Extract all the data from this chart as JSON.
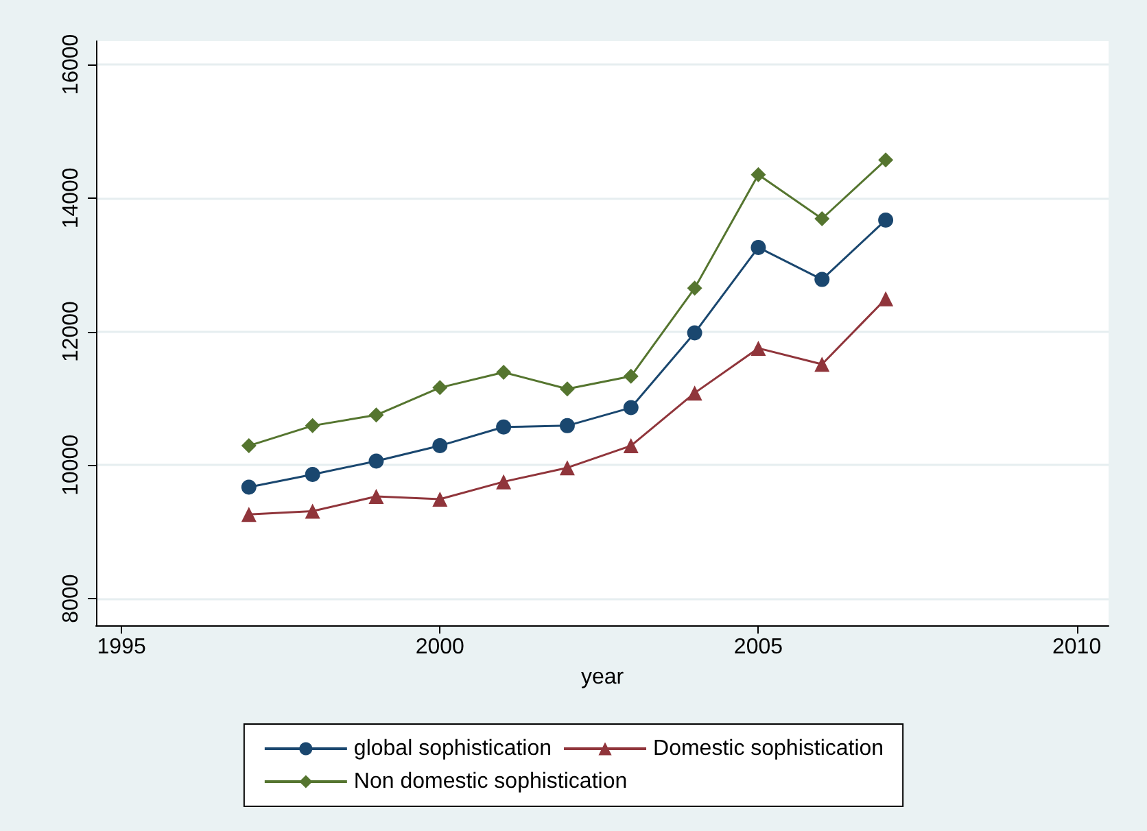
{
  "chart_data": {
    "type": "line",
    "xlabel": "year",
    "x": [
      1997,
      1998,
      1999,
      2000,
      2001,
      2002,
      2003,
      2004,
      2005,
      2006,
      2007
    ],
    "series": [
      {
        "name": "global sophistication",
        "color": "#1a476f",
        "marker": "circle",
        "values": [
          9670,
          9860,
          10060,
          10290,
          10570,
          10590,
          10860,
          11980,
          13260,
          12780,
          13670
        ]
      },
      {
        "name": "Domestic sophistication",
        "color": "#90353b",
        "marker": "triangle",
        "values": [
          9260,
          9310,
          9530,
          9490,
          9750,
          9960,
          10290,
          11080,
          11750,
          11510,
          12490
        ]
      },
      {
        "name": "Non domestic sophistication",
        "color": "#55752f",
        "marker": "diamond",
        "values": [
          10290,
          10590,
          10750,
          11160,
          11390,
          11140,
          11330,
          12650,
          14350,
          13690,
          14570
        ]
      }
    ],
    "xlim": [
      1994.6,
      2010.5
    ],
    "xticks": [
      1995,
      2000,
      2005,
      2010
    ],
    "ylim": [
      7600,
      16350
    ],
    "yticks": [
      8000,
      10000,
      12000,
      14000,
      16000
    ],
    "grid": "y",
    "legend": "bottom"
  }
}
